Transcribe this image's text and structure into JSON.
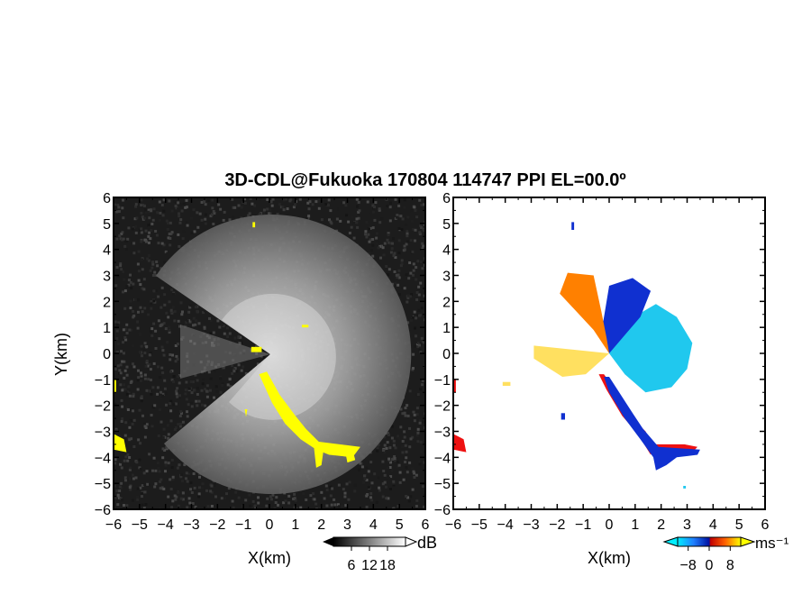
{
  "title": "3D-CDL@Fukuoka 170804 114747 PPI EL=00.0º",
  "colors": {
    "echo_yellow": "#ffff00",
    "dark_background": "#1c1c1c",
    "blue": "#1030d0",
    "cyan": "#20c8ee",
    "orange": "#ff8000",
    "red": "#ee1111",
    "yellow_light": "#ffe060"
  },
  "chart_data": [
    {
      "type": "heatmap",
      "panel": "reflectivity",
      "xlabel": "X(km)",
      "ylabel": "Y(km)",
      "xlim": [
        -6,
        6
      ],
      "ylim": [
        -6,
        6
      ],
      "xticks": [
        "−6",
        "−5",
        "−4",
        "−3",
        "−2",
        "−1",
        "0",
        "1",
        "2",
        "3",
        "4",
        "5",
        "6"
      ],
      "yticks": [
        "6",
        "5",
        "4",
        "3",
        "2",
        "1",
        "0",
        "−1",
        "−2",
        "−3",
        "−4",
        "−5",
        "−6"
      ],
      "colorbar": {
        "unit": "dB",
        "ticks": [
          "6",
          "12",
          "18"
        ],
        "range": [
          0,
          24
        ]
      },
      "highlight_regions": [
        {
          "name": "echo-band-main",
          "points": [
            [
              -0.4,
              -0.8
            ],
            [
              -0.1,
              -0.7
            ],
            [
              0.4,
              -1.6
            ],
            [
              1.0,
              -2.4
            ],
            [
              1.4,
              -2.9
            ],
            [
              1.9,
              -3.4
            ],
            [
              2.7,
              -3.5
            ],
            [
              3.5,
              -3.6
            ],
            [
              3.2,
              -4.0
            ],
            [
              2.3,
              -3.9
            ],
            [
              1.8,
              -3.7
            ],
            [
              1.2,
              -3.3
            ],
            [
              0.6,
              -2.7
            ],
            [
              0.1,
              -1.9
            ]
          ]
        },
        {
          "name": "echo-stub-1",
          "points": [
            [
              1.7,
              -3.5
            ],
            [
              2.1,
              -3.6
            ],
            [
              2.0,
              -4.3
            ],
            [
              1.8,
              -4.4
            ]
          ]
        },
        {
          "name": "echo-stub-2",
          "points": [
            [
              2.9,
              -3.7
            ],
            [
              3.2,
              -3.7
            ],
            [
              3.3,
              -4.1
            ],
            [
              3.0,
              -4.2
            ]
          ]
        },
        {
          "name": "echo-left-1",
          "points": [
            [
              -6.0,
              -1.0
            ],
            [
              -5.9,
              -1.0
            ],
            [
              -5.9,
              -1.5
            ],
            [
              -6.0,
              -1.5
            ]
          ]
        },
        {
          "name": "echo-left-2",
          "points": [
            [
              -6.0,
              -3.1
            ],
            [
              -5.6,
              -3.3
            ],
            [
              -5.5,
              -3.8
            ],
            [
              -6.0,
              -3.7
            ]
          ]
        },
        {
          "name": "echo-blip-1",
          "points": [
            [
              -0.7,
              0.25
            ],
            [
              -0.3,
              0.25
            ],
            [
              -0.3,
              0.05
            ],
            [
              -0.7,
              0.05
            ]
          ]
        },
        {
          "name": "echo-blip-2",
          "points": [
            [
              -0.95,
              -2.15
            ],
            [
              -0.85,
              -2.15
            ],
            [
              -0.9,
              -2.45
            ]
          ]
        },
        {
          "name": "echo-blip-3",
          "points": [
            [
              -0.65,
              5.05
            ],
            [
              -0.55,
              5.05
            ],
            [
              -0.55,
              4.85
            ],
            [
              -0.65,
              4.85
            ]
          ]
        },
        {
          "name": "echo-blip-4",
          "points": [
            [
              1.25,
              1.1
            ],
            [
              1.5,
              1.1
            ],
            [
              1.5,
              1.0
            ],
            [
              1.25,
              1.0
            ]
          ]
        }
      ]
    },
    {
      "type": "heatmap",
      "panel": "doppler-velocity",
      "xlabel": "X(km)",
      "ylabel": "",
      "xlim": [
        -6,
        6
      ],
      "ylim": [
        -6,
        6
      ],
      "xticks": [
        "−6",
        "−5",
        "−4",
        "−3",
        "−2",
        "−1",
        "0",
        "1",
        "2",
        "3",
        "4",
        "5",
        "6"
      ],
      "yticks": [
        "6",
        "5",
        "4",
        "3",
        "2",
        "1",
        "0",
        "−1",
        "−2",
        "−3",
        "−4",
        "−5",
        "−6"
      ],
      "colorbar": {
        "unit": "ms⁻¹",
        "ticks": [
          "−8",
          "0",
          "8"
        ],
        "range": [
          -12,
          12
        ]
      },
      "regions": [
        {
          "name": "velocity-cyan-sector",
          "value": -6,
          "points": [
            [
              0,
              0
            ],
            [
              0.6,
              1.2
            ],
            [
              1.8,
              1.9
            ],
            [
              2.6,
              1.4
            ],
            [
              3.2,
              0.4
            ],
            [
              3.0,
              -0.6
            ],
            [
              2.4,
              -1.3
            ],
            [
              1.4,
              -1.5
            ],
            [
              0.6,
              -0.8
            ]
          ]
        },
        {
          "name": "velocity-blue-sector",
          "value": -10,
          "points": [
            [
              0,
              0
            ],
            [
              -0.3,
              0.8
            ],
            [
              0,
              2.6
            ],
            [
              0.9,
              2.9
            ],
            [
              1.6,
              2.4
            ],
            [
              1.2,
              1.4
            ],
            [
              0.6,
              0.7
            ]
          ]
        },
        {
          "name": "velocity-orange-sector",
          "value": 6,
          "points": [
            [
              0,
              0
            ],
            [
              -0.6,
              0.9
            ],
            [
              -1.9,
              2.3
            ],
            [
              -1.6,
              3.1
            ],
            [
              -0.6,
              3.0
            ],
            [
              -0.3,
              1.6
            ],
            [
              -0.1,
              0.6
            ]
          ]
        },
        {
          "name": "velocity-yellow-sector",
          "value": 3,
          "points": [
            [
              0,
              0
            ],
            [
              -2.9,
              0.3
            ],
            [
              -2.9,
              -0.2
            ],
            [
              -1.8,
              -0.9
            ],
            [
              -0.9,
              -0.8
            ]
          ]
        },
        {
          "name": "velocity-red-band",
          "value": 8,
          "points": [
            [
              -0.4,
              -0.8
            ],
            [
              -0.2,
              -0.8
            ],
            [
              0.8,
              -2.2
            ],
            [
              1.2,
              -2.8
            ],
            [
              1.4,
              -3.0
            ],
            [
              1.7,
              -3.6
            ],
            [
              1.6,
              -3.9
            ],
            [
              1.1,
              -3.1
            ],
            [
              0.5,
              -2.4
            ],
            [
              -0.1,
              -1.4
            ]
          ]
        },
        {
          "name": "velocity-red-band-2",
          "value": 8,
          "points": [
            [
              1.7,
              -3.5
            ],
            [
              2.9,
              -3.5
            ],
            [
              3.4,
              -3.6
            ],
            [
              3.2,
              -3.8
            ],
            [
              2.5,
              -3.8
            ],
            [
              1.9,
              -3.9
            ]
          ]
        },
        {
          "name": "velocity-blue-band",
          "value": -10,
          "points": [
            [
              -0.2,
              -0.9
            ],
            [
              0.0,
              -0.9
            ],
            [
              0.9,
              -2.3
            ],
            [
              1.3,
              -2.9
            ],
            [
              1.9,
              -3.6
            ],
            [
              3.5,
              -3.7
            ],
            [
              3.4,
              -3.9
            ],
            [
              2.6,
              -4.0
            ],
            [
              2.2,
              -4.3
            ],
            [
              1.8,
              -4.5
            ],
            [
              1.7,
              -4.0
            ],
            [
              1.2,
              -3.3
            ],
            [
              0.6,
              -2.5
            ],
            [
              0.0,
              -1.5
            ]
          ]
        },
        {
          "name": "velocity-left-red-1",
          "value": 8,
          "points": [
            [
              -6.0,
              -1.0
            ],
            [
              -5.9,
              -1.0
            ],
            [
              -5.9,
              -1.5
            ],
            [
              -6.0,
              -1.5
            ]
          ]
        },
        {
          "name": "velocity-left-red-2",
          "value": 8,
          "points": [
            [
              -6.0,
              -3.1
            ],
            [
              -5.6,
              -3.3
            ],
            [
              -5.5,
              -3.8
            ],
            [
              -6.0,
              -3.7
            ]
          ]
        },
        {
          "name": "velocity-blip-1",
          "value": -10,
          "points": [
            [
              -1.45,
              5.05
            ],
            [
              -1.35,
              5.05
            ],
            [
              -1.35,
              4.75
            ],
            [
              -1.45,
              4.75
            ]
          ]
        },
        {
          "name": "velocity-blip-2",
          "value": -10,
          "points": [
            [
              -1.85,
              -2.3
            ],
            [
              -1.7,
              -2.3
            ],
            [
              -1.7,
              -2.55
            ],
            [
              -1.85,
              -2.55
            ]
          ]
        },
        {
          "name": "velocity-blip-3",
          "value": -6,
          "points": [
            [
              2.85,
              -5.1
            ],
            [
              2.95,
              -5.1
            ],
            [
              2.95,
              -5.2
            ],
            [
              2.85,
              -5.2
            ]
          ]
        },
        {
          "name": "velocity-blip-4",
          "value": 3,
          "points": [
            [
              -4.1,
              -1.1
            ],
            [
              -3.8,
              -1.1
            ],
            [
              -3.8,
              -1.25
            ],
            [
              -4.1,
              -1.25
            ]
          ]
        }
      ]
    }
  ]
}
